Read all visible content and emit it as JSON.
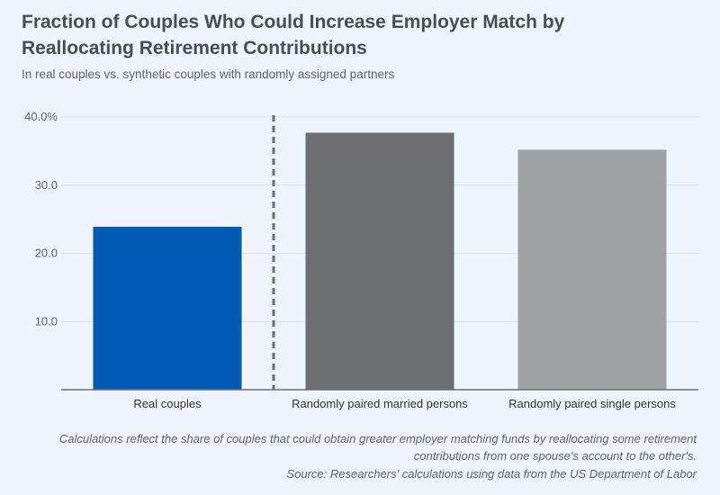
{
  "chart_data": {
    "type": "bar",
    "title": "Fraction of Couples Who Could Increase Employer Match by Reallocating Retirement Contributions",
    "subtitle": "In real couples vs. synthetic couples with randomly assigned partners",
    "categories": [
      "Real couples",
      "Randomly paired married persons",
      "Randomly paired single persons"
    ],
    "values": [
      23.9,
      37.7,
      35.2
    ],
    "colors": [
      "#005ab4",
      "#6d6e72",
      "#a0a1a5"
    ],
    "ylabel": "",
    "xlabel": "",
    "ylim": [
      0,
      40
    ],
    "yticks": [
      10,
      20,
      30,
      40
    ],
    "ytick_labels": [
      "10.0",
      "20.0",
      "30.0",
      "40.0%"
    ],
    "grid": true,
    "divider": "dashed vertical line between 'Real couples' and randomly paired groups",
    "note": "Calculations reflect the share of couples that could obtain greater employer matching funds by reallocating some retirement contributions from one spouse's account to the other's.",
    "source": "Source: Researchers' calculations using data from the US Department of Labor"
  }
}
